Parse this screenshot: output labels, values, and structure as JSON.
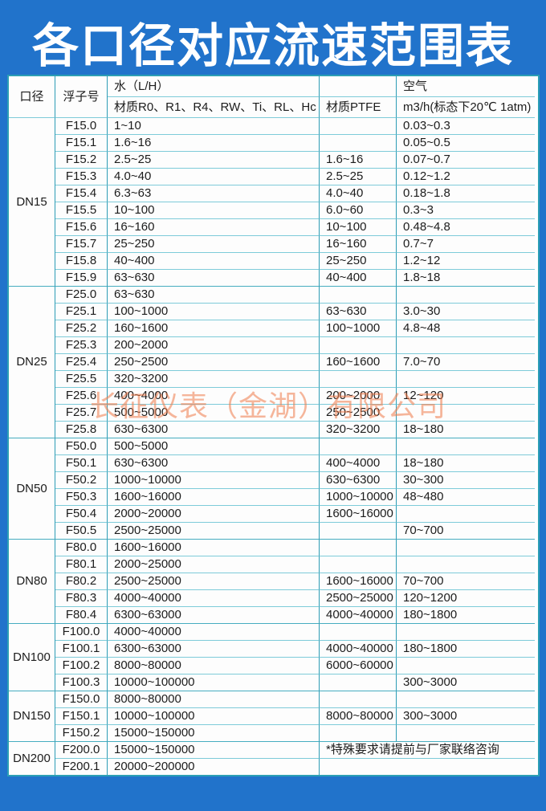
{
  "title": "各口径对应流速范围表",
  "watermark": "长征仪表（金湖）有限公司",
  "colors": {
    "background": "#2173cb",
    "border_vertical": "#2d9cb5",
    "border_horizontal": "#7ecbd9",
    "cell_background": "#fdfdfd",
    "text": "#1c1c1c",
    "title_text": "#ffffff",
    "watermark_text": "#ee7a48"
  },
  "header": {
    "col_diameter": "口径",
    "col_float": "浮子号",
    "water_label": "水（L/H）",
    "water_materials": "材质R0、R1、R4、RW、Ti、RL、Hc",
    "ptfe_label": "材质PTFE",
    "air_label": "空气",
    "air_unit": "m3/h(标态下20℃ 1atm)"
  },
  "note": "*特殊要求请提前与厂家联络咨询",
  "groups": [
    {
      "diameter": "DN15",
      "rows": [
        {
          "float": "F15.0",
          "water": "1~10",
          "ptfe": "",
          "air": "0.03~0.3"
        },
        {
          "float": "F15.1",
          "water": "1.6~16",
          "ptfe": "",
          "air": "0.05~0.5"
        },
        {
          "float": "F15.2",
          "water": "2.5~25",
          "ptfe": "1.6~16",
          "air": "0.07~0.7"
        },
        {
          "float": "F15.3",
          "water": "4.0~40",
          "ptfe": "2.5~25",
          "air": "0.12~1.2"
        },
        {
          "float": "F15.4",
          "water": "6.3~63",
          "ptfe": "4.0~40",
          "air": "0.18~1.8"
        },
        {
          "float": "F15.5",
          "water": "10~100",
          "ptfe": "6.0~60",
          "air": "0.3~3"
        },
        {
          "float": "F15.6",
          "water": "16~160",
          "ptfe": "10~100",
          "air": "0.48~4.8"
        },
        {
          "float": "F15.7",
          "water": "25~250",
          "ptfe": "16~160",
          "air": "0.7~7"
        },
        {
          "float": "F15.8",
          "water": "40~400",
          "ptfe": "25~250",
          "air": "1.2~12"
        },
        {
          "float": "F15.9",
          "water": "63~630",
          "ptfe": "40~400",
          "air": "1.8~18"
        }
      ]
    },
    {
      "diameter": "DN25",
      "rows": [
        {
          "float": "F25.0",
          "water": "63~630",
          "ptfe": "",
          "air": ""
        },
        {
          "float": "F25.1",
          "water": "100~1000",
          "ptfe": "63~630",
          "air": "3.0~30"
        },
        {
          "float": "F25.2",
          "water": "160~1600",
          "ptfe": "100~1000",
          "air": "4.8~48"
        },
        {
          "float": "F25.3",
          "water": "200~2000",
          "ptfe": "",
          "air": ""
        },
        {
          "float": "F25.4",
          "water": "250~2500",
          "ptfe": "160~1600",
          "air": "7.0~70"
        },
        {
          "float": "F25.5",
          "water": "320~3200",
          "ptfe": "",
          "air": ""
        },
        {
          "float": "F25.6",
          "water": "400~4000",
          "ptfe": "200~2000",
          "air": "12~120"
        },
        {
          "float": "F25.7",
          "water": "500~5000",
          "ptfe": "250~2500",
          "air": ""
        },
        {
          "float": "F25.8",
          "water": "630~6300",
          "ptfe": "320~3200",
          "air": "18~180"
        }
      ]
    },
    {
      "diameter": "DN50",
      "rows": [
        {
          "float": "F50.0",
          "water": "500~5000",
          "ptfe": "",
          "air": ""
        },
        {
          "float": "F50.1",
          "water": "630~6300",
          "ptfe": "400~4000",
          "air": "18~180"
        },
        {
          "float": "F50.2",
          "water": "1000~10000",
          "ptfe": "630~6300",
          "air": "30~300"
        },
        {
          "float": "F50.3",
          "water": "1600~16000",
          "ptfe": "1000~10000",
          "air": "48~480"
        },
        {
          "float": "F50.4",
          "water": "2000~20000",
          "ptfe": "1600~16000",
          "air": ""
        },
        {
          "float": "F50.5",
          "water": "2500~25000",
          "ptfe": "",
          "air": "70~700"
        }
      ]
    },
    {
      "diameter": "DN80",
      "rows": [
        {
          "float": "F80.0",
          "water": "1600~16000",
          "ptfe": "",
          "air": ""
        },
        {
          "float": "F80.1",
          "water": "2000~25000",
          "ptfe": "",
          "air": ""
        },
        {
          "float": "F80.2",
          "water": "2500~25000",
          "ptfe": "1600~16000",
          "air": "70~700"
        },
        {
          "float": "F80.3",
          "water": "4000~40000",
          "ptfe": "2500~25000",
          "air": "120~1200"
        },
        {
          "float": "F80.4",
          "water": "6300~63000",
          "ptfe": "4000~40000",
          "air": "180~1800"
        }
      ]
    },
    {
      "diameter": "DN100",
      "rows": [
        {
          "float": "F100.0",
          "water": "4000~40000",
          "ptfe": "",
          "air": ""
        },
        {
          "float": "F100.1",
          "water": "6300~63000",
          "ptfe": "4000~40000",
          "air": "180~1800"
        },
        {
          "float": "F100.2",
          "water": "8000~80000",
          "ptfe": "6000~60000",
          "air": ""
        },
        {
          "float": "F100.3",
          "water": "10000~100000",
          "ptfe": "",
          "air": "300~3000"
        }
      ]
    },
    {
      "diameter": "DN150",
      "rows": [
        {
          "float": "F150.0",
          "water": "8000~80000",
          "ptfe": "",
          "air": ""
        },
        {
          "float": "F150.1",
          "water": "10000~100000",
          "ptfe": "8000~80000",
          "air": "300~3000"
        },
        {
          "float": "F150.2",
          "water": "15000~150000",
          "ptfe": "",
          "air": ""
        }
      ]
    },
    {
      "diameter": "DN200",
      "merged_note": true,
      "rows": [
        {
          "float": "F200.0",
          "water": "15000~150000"
        },
        {
          "float": "F200.1",
          "water": "20000~200000"
        }
      ]
    }
  ]
}
